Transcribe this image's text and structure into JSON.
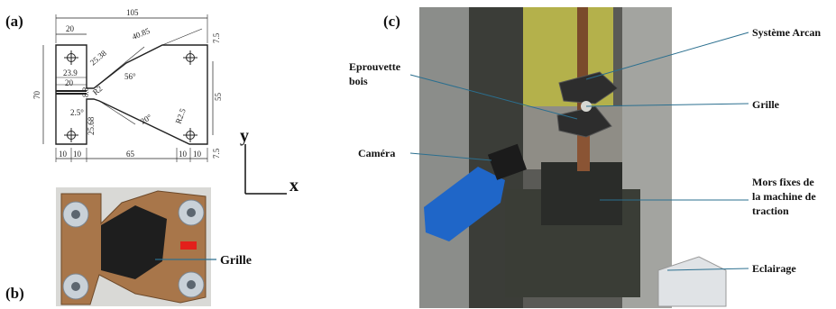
{
  "panels": {
    "a": "(a)",
    "b": "(b)",
    "c": "(c)"
  },
  "specimen_dimensions": {
    "overall_width": "105",
    "left_grip_width": "20",
    "right_top_length": "40.85",
    "upper_angle_segment": "25.38",
    "upper_angle": "56°",
    "right_top_edge": "7.5",
    "height": "70",
    "left_upper_height": "23.9",
    "left_notch_width": "20",
    "notch_radius": "R2",
    "notch_dim": "8.8",
    "right_height": "55",
    "lower_angle_label": "2.5°",
    "lower_segment": "25.68",
    "lower_angle": "20°",
    "hole_radius": "R2.5",
    "right_bottom_edge": "7.5",
    "bottom_left_1": "10",
    "bottom_left_2": "10",
    "bottom_middle": "65",
    "bottom_right_1": "10",
    "bottom_right_2": "10"
  },
  "axes": {
    "y": "y",
    "x": "x"
  },
  "photo_b": {
    "grid_label": "Grille"
  },
  "photo_c": {
    "labels": {
      "arcan": "Système Arcan",
      "eprouvette_1": "Eprouvette",
      "eprouvette_2": "bois",
      "grille": "Grille",
      "camera": "Caméra",
      "mors_1": "Mors fixes de",
      "mors_2": "la machine de",
      "mors_3": "traction",
      "eclairage": "Eclairage"
    }
  },
  "colors": {
    "leader_line": "#2b6f8f",
    "camera_blue": "#1f66c8",
    "wood": "#a8764a",
    "metal": "#b9c2cc"
  }
}
